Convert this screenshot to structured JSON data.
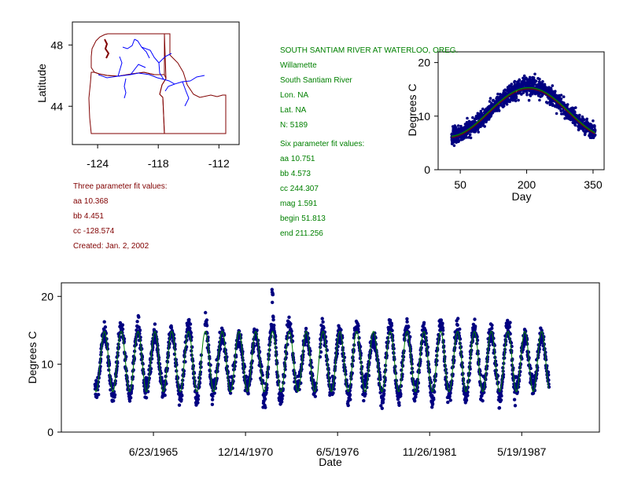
{
  "colors": {
    "map_border": "#800000",
    "river": "#0000ff",
    "site_text": "#008000",
    "three_param_text": "#800000",
    "points": "#000080",
    "fit": "#008000",
    "fit_top": "#800000"
  },
  "site": {
    "name": "SOUTH SANTIAM RIVER AT WATERLOO, OREG.",
    "basin": "Willamette",
    "river": "South Santiam River",
    "lon": "Lon. NA",
    "lat": "Lat. NA",
    "n": "N: 5189"
  },
  "six_param": {
    "heading": "Six parameter fit values:",
    "aa": "aa 10.751",
    "bb": "bb 4.573",
    "cc": "cc 244.307",
    "mag": "mag 1.591",
    "begin": "begin 51.813",
    "end": "end 211.256"
  },
  "three_param": {
    "heading": "Three parameter fit values:",
    "aa": "aa 10.368",
    "bb": "bb 4.451",
    "cc": "cc -128.574",
    "created": "Created:   Jan. 2, 2002"
  },
  "chart_data": [
    {
      "type": "map",
      "ylabel": "Latitude",
      "xlabel": "",
      "x_ticks": [
        "-124",
        "-118",
        "-112"
      ],
      "y_ticks": [
        "48",
        "44"
      ],
      "xlim": [
        -126.5,
        -110
      ],
      "ylim": [
        41.5,
        49.5
      ]
    },
    {
      "type": "scatter",
      "xlabel": "Day",
      "ylabel": "Degrees C",
      "x_ticks": [
        "50",
        "200",
        "350"
      ],
      "y_ticks": [
        "0",
        "10",
        "20"
      ],
      "xlim": [
        0,
        375
      ],
      "ylim": [
        0,
        22
      ],
      "day_range": [
        30,
        355
      ],
      "fit": {
        "aa": 10.751,
        "bb": 4.573,
        "cc": 244.307
      }
    },
    {
      "type": "scatter",
      "xlabel": "Date",
      "ylabel": "Degrees C",
      "x_ticks": [
        "6/23/1965",
        "12/14/1970",
        "6/5/1976",
        "11/26/1981",
        "5/19/1987"
      ],
      "y_ticks": [
        "0",
        "10",
        "20"
      ],
      "xlim": [
        "1/1/1960",
        "12/31/1991"
      ],
      "ylim": [
        0,
        22
      ],
      "date_range": [
        "1/1/1962",
        "12/31/1988"
      ],
      "fit": {
        "aa": 10.368,
        "bb": 4.451,
        "cc": -128.574
      }
    }
  ]
}
